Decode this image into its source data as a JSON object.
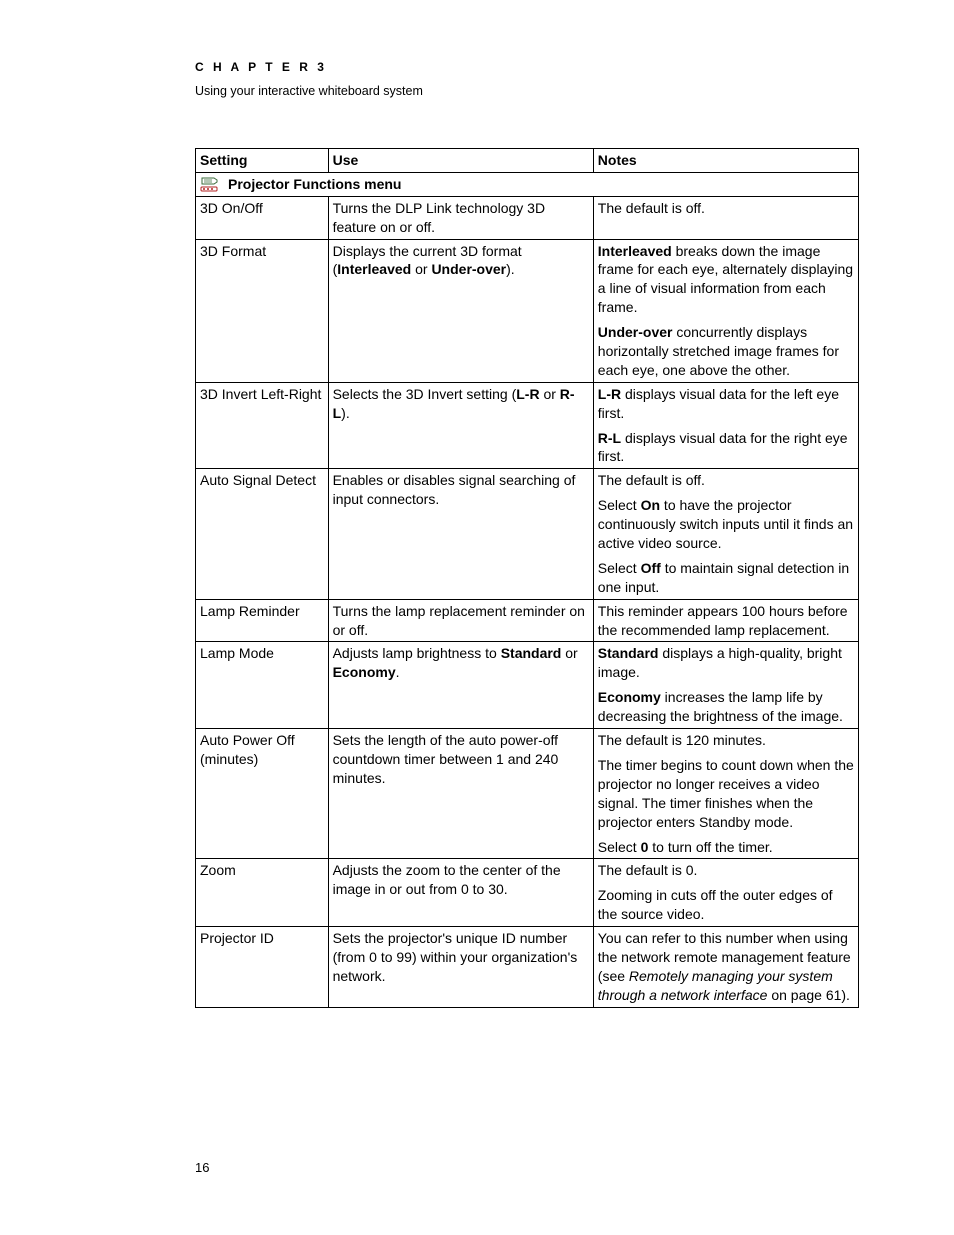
{
  "header": {
    "chapter_label": "C H A P T E R   3",
    "subtitle": "Using your interactive whiteboard system"
  },
  "table": {
    "headers": {
      "setting": "Setting",
      "use": "Use",
      "notes": "Notes"
    },
    "section_title": "Projector Functions menu",
    "rows": [
      {
        "setting": "3D On/Off",
        "use": [
          {
            "t": "Turns the DLP Link technology 3D feature on or off."
          }
        ],
        "notes": [
          [
            {
              "t": "The default is off."
            }
          ]
        ]
      },
      {
        "setting": "3D Format",
        "use": [
          {
            "t": "Displays the current 3D format ("
          },
          {
            "t": "Interleaved",
            "b": true
          },
          {
            "t": " or "
          },
          {
            "t": "Under-over",
            "b": true
          },
          {
            "t": ")."
          }
        ],
        "notes": [
          [
            {
              "t": "Interleaved",
              "b": true
            },
            {
              "t": " breaks down the image frame for each eye, alternately displaying a line of visual information from each frame."
            }
          ],
          [
            {
              "t": "Under-over",
              "b": true
            },
            {
              "t": " concurrently displays horizontally stretched image frames for each eye, one above the other."
            }
          ]
        ]
      },
      {
        "setting": "3D Invert Left-Right",
        "use": [
          {
            "t": "Selects the 3D Invert setting ("
          },
          {
            "t": "L-R",
            "b": true
          },
          {
            "t": " or "
          },
          {
            "t": "R-L",
            "b": true
          },
          {
            "t": ")."
          }
        ],
        "notes": [
          [
            {
              "t": "L-R",
              "b": true
            },
            {
              "t": " displays visual data for the left eye first."
            }
          ],
          [
            {
              "t": "R-L",
              "b": true
            },
            {
              "t": " displays visual data for the right eye first."
            }
          ]
        ]
      },
      {
        "setting": "Auto Signal Detect",
        "use": [
          {
            "t": "Enables or disables signal searching of input connectors."
          }
        ],
        "notes": [
          [
            {
              "t": "The default is off."
            }
          ],
          [
            {
              "t": "Select "
            },
            {
              "t": "On",
              "b": true
            },
            {
              "t": " to have the projector continuously switch inputs until it finds an active video source."
            }
          ],
          [
            {
              "t": "Select "
            },
            {
              "t": "Off",
              "b": true
            },
            {
              "t": " to maintain signal detection in one input."
            }
          ]
        ]
      },
      {
        "setting": "Lamp Reminder",
        "use": [
          {
            "t": "Turns the lamp replacement reminder on or off."
          }
        ],
        "notes": [
          [
            {
              "t": "This reminder appears 100 hours before the recommended lamp replacement."
            }
          ]
        ]
      },
      {
        "setting": "Lamp Mode",
        "use": [
          {
            "t": "Adjusts lamp brightness to "
          },
          {
            "t": "Standard",
            "b": true
          },
          {
            "t": " or "
          },
          {
            "t": "Economy",
            "b": true
          },
          {
            "t": "."
          }
        ],
        "notes": [
          [
            {
              "t": "Standard",
              "b": true
            },
            {
              "t": " displays a high-quality, bright image."
            }
          ],
          [
            {
              "t": "Economy",
              "b": true
            },
            {
              "t": " increases the lamp life by decreasing the brightness of the image."
            }
          ]
        ]
      },
      {
        "setting": "Auto Power Off (minutes)",
        "use": [
          {
            "t": "Sets the length of the auto power-off countdown timer between 1 and 240 minutes."
          }
        ],
        "notes": [
          [
            {
              "t": "The default is 120 minutes."
            }
          ],
          [
            {
              "t": "The timer begins to count down when the projector no longer receives a video signal. The timer finishes when the projector enters Standby mode."
            }
          ],
          [
            {
              "t": "Select "
            },
            {
              "t": "0",
              "b": true
            },
            {
              "t": " to turn off the timer."
            }
          ]
        ]
      },
      {
        "setting": "Zoom",
        "use": [
          {
            "t": "Adjusts the zoom to the center of the image in or out from 0 to 30."
          }
        ],
        "notes": [
          [
            {
              "t": "The default is 0."
            }
          ],
          [
            {
              "t": "Zooming in cuts off the outer edges of the source video."
            }
          ]
        ]
      },
      {
        "setting": "Projector ID",
        "use": [
          {
            "t": "Sets the projector's unique ID number (from 0 to 99) within your organization's network."
          }
        ],
        "notes": [
          [
            {
              "t": "You can refer to this number when using the network remote management feature (see "
            },
            {
              "t": "Remotely managing your system through a network interface",
              "i": true
            },
            {
              "t": " on page 61)."
            }
          ]
        ]
      }
    ]
  },
  "page_number": "16"
}
